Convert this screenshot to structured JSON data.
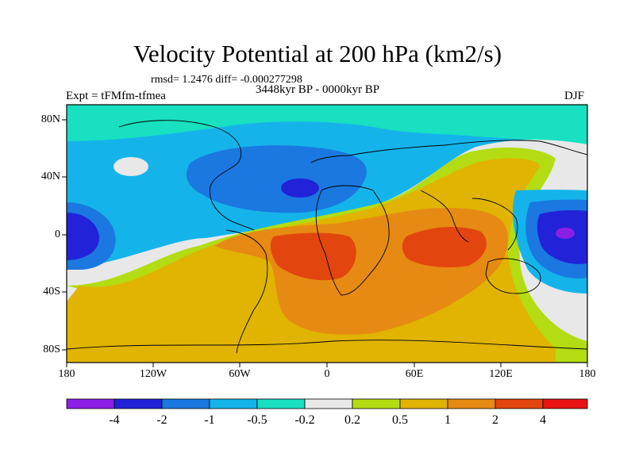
{
  "title": "Velocity Potential at 200 hPa (km2/s)",
  "stats": "rmsd= 1.2476 diff= -0.000277298",
  "experiment": "Expt = tFMfm-tfmea",
  "period": "3448kyr BP - 0000kyr BP",
  "season": "DJF",
  "lat_labels": [
    "80N",
    "40N",
    "0",
    "40S",
    "80S"
  ],
  "lon_labels": [
    "180",
    "120W",
    "60W",
    "0",
    "60E",
    "120E",
    "180"
  ],
  "colorbar": {
    "levels": [
      "-4",
      "-2",
      "-1",
      "-0.5",
      "-0.2",
      "0.2",
      "0.5",
      "1",
      "2",
      "4"
    ],
    "colors": [
      "#8c1fe6",
      "#2222d8",
      "#1a78e0",
      "#14b4ea",
      "#18e0c0",
      "#e8e8e8",
      "#b4dc12",
      "#e0b400",
      "#e68a14",
      "#e2460e",
      "#e81414"
    ]
  }
}
